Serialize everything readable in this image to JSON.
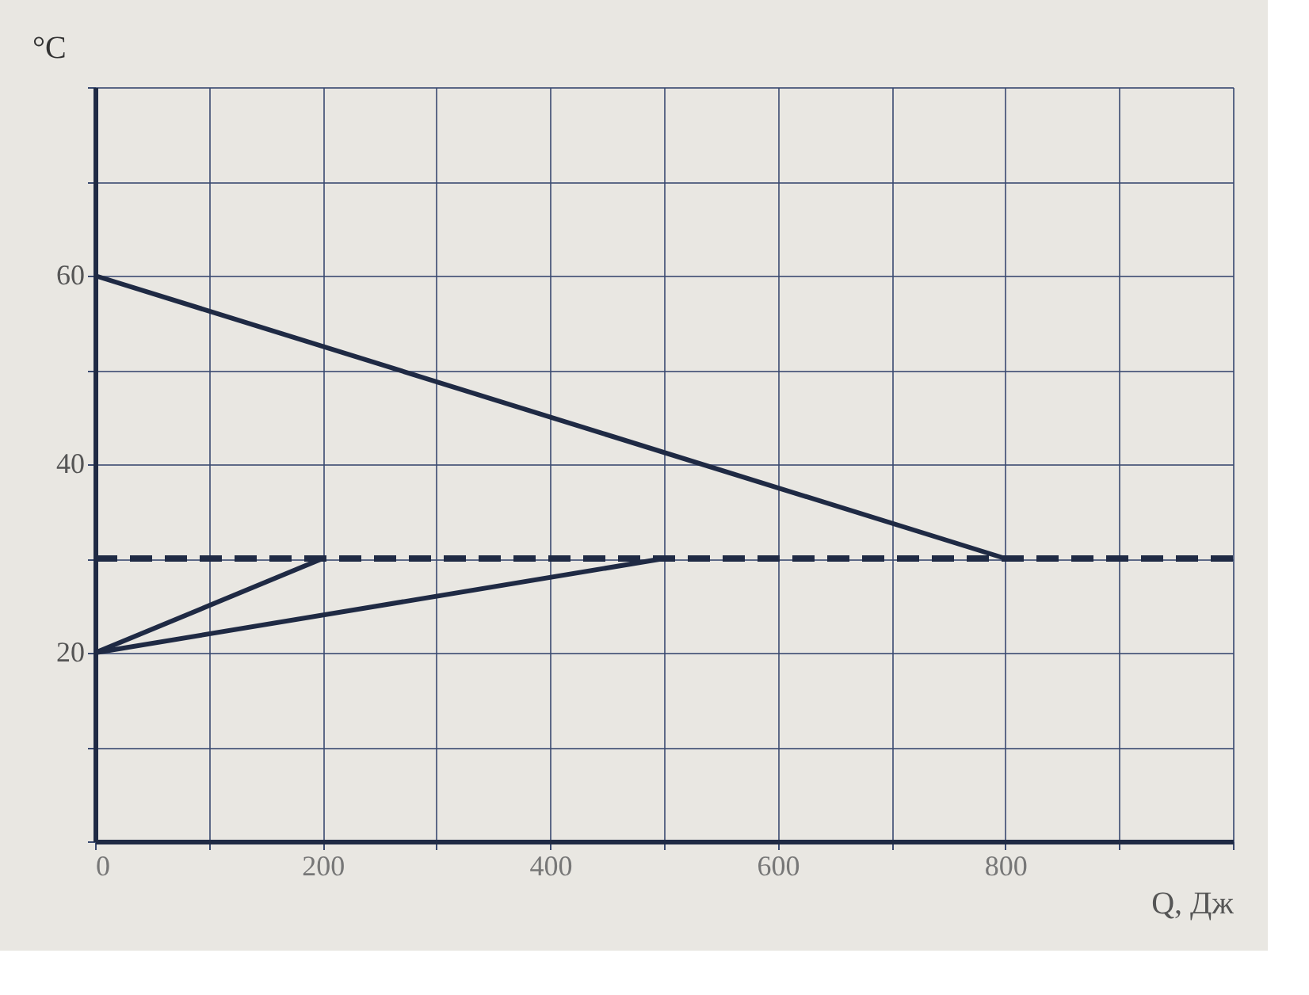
{
  "chart_data": {
    "type": "line",
    "xlabel": "Q, Дж",
    "ylabel": "°C",
    "xlim": [
      0,
      1000
    ],
    "ylim": [
      0,
      80
    ],
    "xticks": [
      0,
      {
        "value": 100,
        "label": null
      },
      200,
      {
        "value": 300,
        "label": null
      },
      400,
      {
        "value": 500,
        "label": null
      },
      600,
      {
        "value": 700,
        "label": null
      },
      800,
      {
        "value": 900,
        "label": null
      },
      {
        "value": 1000,
        "label": null
      }
    ],
    "yticks": [
      {
        "value": 0,
        "label": null
      },
      {
        "value": 10,
        "label": null
      },
      20,
      {
        "value": 30,
        "label": null
      },
      40,
      {
        "value": 50,
        "label": null
      },
      60,
      {
        "value": 70,
        "label": null
      },
      {
        "value": 80,
        "label": null
      }
    ],
    "grid": true,
    "line_style": "solid",
    "marker": "none",
    "series": [
      {
        "color": "#1f2a44",
        "x": [
          0,
          800
        ],
        "values": [
          60,
          30
        ]
      },
      {
        "color": "#1f2a44",
        "x": [
          0,
          200
        ],
        "values": [
          20,
          30
        ]
      },
      {
        "color": "#1f2a44",
        "x": [
          0,
          500
        ],
        "values": [
          20,
          30
        ]
      }
    ],
    "ref_lines": [
      {
        "axis": "y",
        "value": 30,
        "label": null,
        "color": "#1f2a44",
        "line_style": "dashed"
      }
    ]
  }
}
